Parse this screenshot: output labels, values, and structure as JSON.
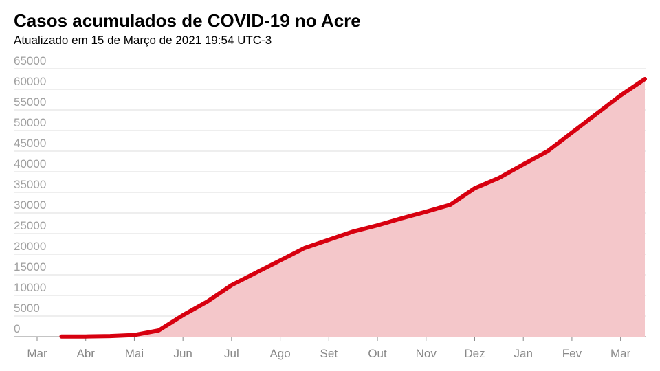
{
  "chart_data": {
    "type": "area",
    "title": "Casos acumulados de COVID-19 no Acre",
    "subtitle": "Atualizado em 15 de Março de 2021 19:54 UTC-3",
    "categories": [
      "Mar",
      null,
      "Abr",
      null,
      "Mai",
      null,
      "Jun",
      null,
      "Jul",
      null,
      "Ago",
      null,
      "Set",
      null,
      "Out",
      null,
      "Nov",
      null,
      "Dez",
      null,
      "Jan",
      null,
      "Fev",
      null,
      "Mar",
      null
    ],
    "values": [
      null,
      30,
      50,
      150,
      400,
      1500,
      5200,
      8500,
      12500,
      15500,
      18500,
      21500,
      23500,
      25500,
      27000,
      28700,
      30300,
      32000,
      36000,
      38500,
      41800,
      45000,
      49500,
      54000,
      58500,
      62500
    ],
    "color": "#d7000f",
    "fill": "#f4c7ca",
    "ylim": [
      0,
      65000
    ],
    "yticks": [
      0,
      5000,
      10000,
      15000,
      20000,
      25000,
      30000,
      35000,
      40000,
      45000,
      50000,
      55000,
      60000,
      65000
    ],
    "grid": true
  }
}
